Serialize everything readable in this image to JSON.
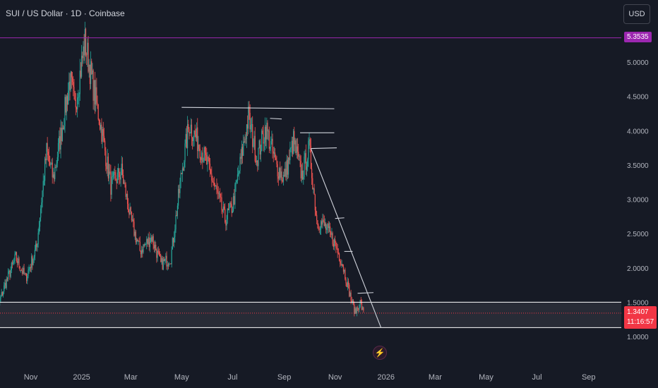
{
  "header": {
    "title": "SUI / US Dollar · 1D · Coinbase",
    "currency_label": "USD"
  },
  "colors": {
    "up": "#26a69a",
    "down": "#ef5350",
    "resistance_line": "#9c27b0",
    "support_line": "#ffffff",
    "current_price": "#f23645",
    "background": "#161a25"
  },
  "tags": {
    "resistance_price": "5.3535",
    "current_price": "1.3407",
    "countdown": "11:16:57"
  },
  "icons": {
    "alert": "lightning-icon"
  },
  "chart_data": {
    "type": "candlestick",
    "symbol": "SUI / US Dollar",
    "interval": "1D",
    "exchange": "Coinbase",
    "x_tick_labels": [
      "Nov",
      "2025",
      "Mar",
      "May",
      "Jul",
      "Sep",
      "Nov",
      "2026",
      "Mar",
      "May",
      "Jul",
      "Sep"
    ],
    "y_tick_labels": [
      "1.0000",
      "1.5000",
      "2.0000",
      "2.5000",
      "3.0000",
      "3.5000",
      "4.0000",
      "4.5000",
      "5.0000",
      "5.3535"
    ],
    "ylim": [
      0.9,
      5.5
    ],
    "xlim": [
      "2024-09-15",
      "2026-09-30"
    ],
    "path_points": [
      [
        "2024-09-15",
        1.15
      ],
      [
        "2024-10-01",
        1.75
      ],
      [
        "2024-10-14",
        2.15
      ],
      [
        "2024-10-26",
        1.85
      ],
      [
        "2024-11-08",
        2.3
      ],
      [
        "2024-11-20",
        3.7
      ],
      [
        "2024-11-28",
        3.3
      ],
      [
        "2024-12-08",
        4.0
      ],
      [
        "2024-12-18",
        4.75
      ],
      [
        "2024-12-24",
        4.35
      ],
      [
        "2025-01-05",
        5.3
      ],
      [
        "2025-01-14",
        4.7
      ],
      [
        "2025-01-25",
        4.0
      ],
      [
        "2025-02-05",
        3.2
      ],
      [
        "2025-02-18",
        3.4
      ],
      [
        "2025-03-01",
        2.7
      ],
      [
        "2025-03-12",
        2.25
      ],
      [
        "2025-03-26",
        2.45
      ],
      [
        "2025-04-06",
        2.05
      ],
      [
        "2025-04-18",
        2.15
      ],
      [
        "2025-05-01",
        3.4
      ],
      [
        "2025-05-10",
        4.1
      ],
      [
        "2025-05-22",
        3.8
      ],
      [
        "2025-06-01",
        3.5
      ],
      [
        "2025-06-12",
        3.1
      ],
      [
        "2025-06-22",
        2.7
      ],
      [
        "2025-07-01",
        2.9
      ],
      [
        "2025-07-10",
        3.5
      ],
      [
        "2025-07-20",
        4.2
      ],
      [
        "2025-07-30",
        3.6
      ],
      [
        "2025-08-10",
        4.05
      ],
      [
        "2025-08-22",
        3.5
      ],
      [
        "2025-09-01",
        3.3
      ],
      [
        "2025-09-12",
        3.85
      ],
      [
        "2025-09-22",
        3.35
      ],
      [
        "2025-10-01",
        3.75
      ],
      [
        "2025-10-10",
        2.7
      ],
      [
        "2025-10-20",
        2.6
      ],
      [
        "2025-10-30",
        2.4
      ],
      [
        "2025-11-10",
        2.05
      ],
      [
        "2025-11-20",
        1.55
      ],
      [
        "2025-11-25",
        1.35
      ],
      [
        "2025-12-01",
        1.5
      ],
      [
        "2025-12-05",
        1.3407
      ]
    ],
    "horizontal_levels": [
      {
        "label": "5.3535",
        "price": 5.3535,
        "style": "purple"
      },
      {
        "price": 1.5,
        "style": "white"
      },
      {
        "price": 1.34,
        "style": "red-dotted"
      },
      {
        "price": 1.13,
        "style": "white"
      }
    ],
    "annotations": [
      {
        "from": [
          "2025-05-01",
          4.34
        ],
        "to": [
          "2025-10-31",
          4.32
        ]
      },
      {
        "from": [
          "2025-08-15",
          4.18
        ],
        "to": [
          "2025-08-29",
          4.17
        ]
      },
      {
        "from": [
          "2025-09-20",
          3.97
        ],
        "to": [
          "2025-10-31",
          3.97
        ]
      },
      {
        "from": [
          "2025-10-03",
          3.74
        ],
        "to": [
          "2025-11-03",
          3.75
        ]
      },
      {
        "from": [
          "2025-11-01",
          2.72
        ],
        "to": [
          "2025-11-12",
          2.73
        ]
      },
      {
        "from": [
          "2025-11-12",
          2.24
        ],
        "to": [
          "2025-11-22",
          2.24
        ]
      },
      {
        "from": [
          "2025-11-28",
          1.63
        ],
        "to": [
          "2025-12-17",
          1.64
        ]
      },
      {
        "from": [
          "2025-10-03",
          3.74
        ],
        "to": [
          "2025-12-26",
          1.13
        ]
      }
    ]
  }
}
